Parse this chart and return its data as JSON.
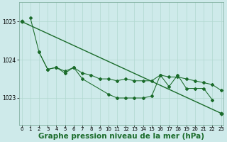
{
  "background_color": "#ceeaea",
  "grid_color": "#b0d8d0",
  "line_color": "#1a6b2a",
  "xlabel": "Graphe pression niveau de la mer (hPa)",
  "xlabel_fontsize": 7.5,
  "yticks": [
    1023,
    1024,
    1025
  ],
  "xticks": [
    0,
    1,
    2,
    3,
    4,
    5,
    6,
    7,
    8,
    9,
    10,
    11,
    12,
    13,
    14,
    15,
    16,
    17,
    18,
    19,
    20,
    21,
    22,
    23
  ],
  "ylim": [
    1022.3,
    1025.5
  ],
  "xlim": [
    -0.3,
    23.3
  ],
  "series1_x": [
    0,
    23
  ],
  "series1_y": [
    1025.0,
    1022.6
  ],
  "series2_x": [
    1,
    2,
    3,
    4,
    5,
    6,
    7,
    8,
    9,
    10,
    11,
    12,
    13,
    14,
    15,
    16,
    17,
    18,
    19,
    20,
    21,
    22,
    23
  ],
  "series2_y": [
    1025.1,
    1024.2,
    1023.75,
    1023.8,
    1023.7,
    1023.8,
    1023.65,
    1023.6,
    1023.5,
    1023.5,
    1023.45,
    1023.5,
    1023.45,
    1023.45,
    1023.45,
    1023.6,
    1023.55,
    1023.55,
    1023.5,
    1023.45,
    1023.4,
    1023.35,
    1023.2
  ],
  "series3_x": [
    2,
    3,
    4,
    5,
    6,
    7,
    10,
    11,
    12,
    13,
    14,
    15,
    16,
    17,
    18,
    19,
    20,
    21,
    22
  ],
  "series3_y": [
    1024.2,
    1023.75,
    1023.8,
    1023.65,
    1023.8,
    1023.5,
    1023.1,
    1023.0,
    1023.0,
    1023.0,
    1023.0,
    1023.05,
    1023.6,
    1023.3,
    1023.6,
    1023.25,
    1023.25,
    1023.25,
    1022.95
  ]
}
